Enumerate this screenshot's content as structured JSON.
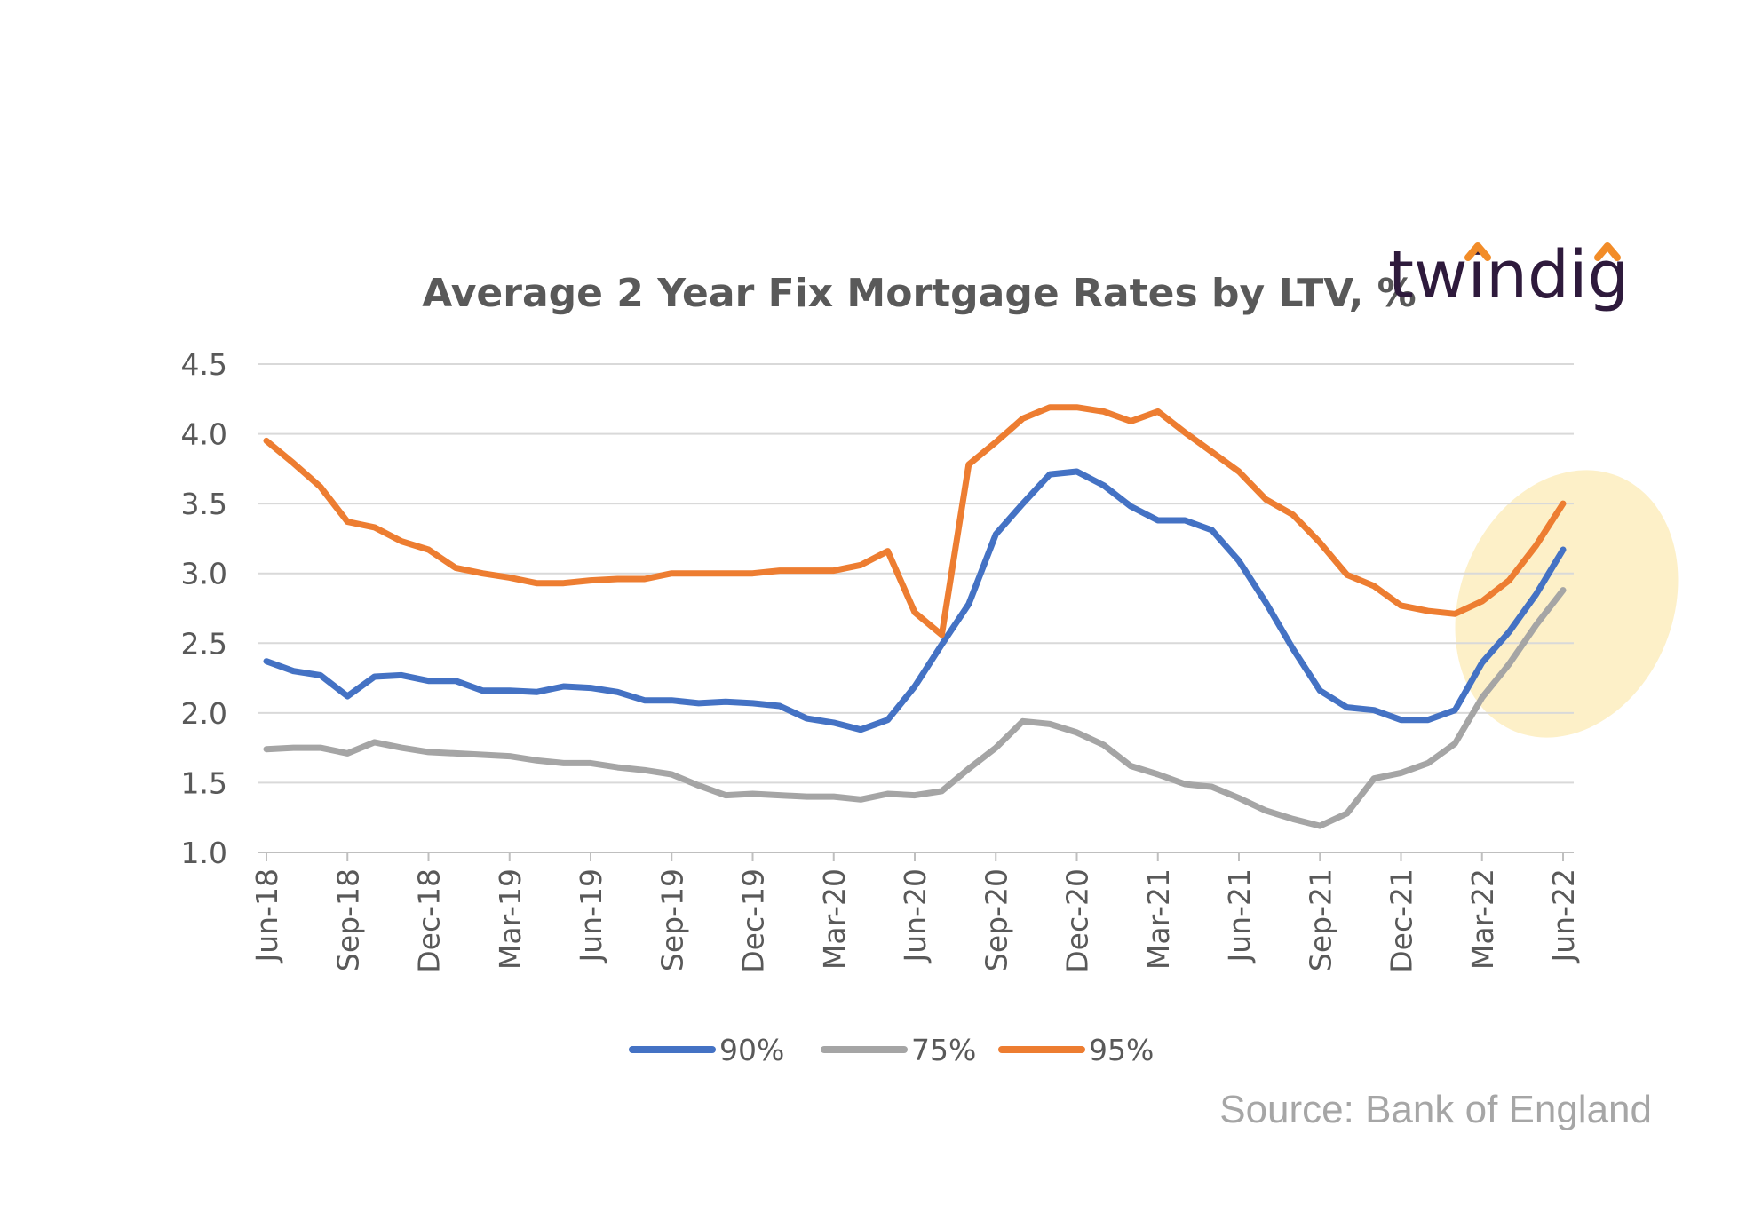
{
  "brand": {
    "logo_text": "twindig",
    "logo_accent_color": "#f28c28",
    "text_color": "#2e1a3c"
  },
  "source_note": "Source: Bank of England",
  "colors": {
    "s90": "#4472c4",
    "s75": "#a5a5a5",
    "s95": "#ed7d31",
    "highlight": "#fdf0c8",
    "grid": "#d9d9d9",
    "text": "#595959"
  },
  "chart_data": {
    "type": "line",
    "title": "Average 2 Year Fix Mortgage Rates by LTV, %",
    "xlabel": "",
    "ylabel": "",
    "ylim": [
      1.0,
      4.5
    ],
    "yticks": [
      "1.0",
      "1.5",
      "2.0",
      "2.5",
      "3.0",
      "3.5",
      "4.0",
      "4.5"
    ],
    "x_tick_labels": [
      "Jun-18",
      "Sep-18",
      "Dec-18",
      "Mar-19",
      "Jun-19",
      "Sep-19",
      "Dec-19",
      "Mar-20",
      "Jun-20",
      "Sep-20",
      "Dec-20",
      "Mar-21",
      "Jun-21",
      "Sep-21",
      "Dec-21",
      "Mar-22",
      "Jun-22"
    ],
    "x": [
      "Jun-18",
      "Jul-18",
      "Aug-18",
      "Sep-18",
      "Oct-18",
      "Nov-18",
      "Dec-18",
      "Jan-19",
      "Feb-19",
      "Mar-19",
      "Apr-19",
      "May-19",
      "Jun-19",
      "Jul-19",
      "Aug-19",
      "Sep-19",
      "Oct-19",
      "Nov-19",
      "Dec-19",
      "Jan-20",
      "Feb-20",
      "Mar-20",
      "Apr-20",
      "May-20",
      "Jun-20",
      "Jul-20",
      "Aug-20",
      "Sep-20",
      "Oct-20",
      "Nov-20",
      "Dec-20",
      "Jan-21",
      "Feb-21",
      "Mar-21",
      "Apr-21",
      "May-21",
      "Jun-21",
      "Jul-21",
      "Aug-21",
      "Sep-21",
      "Oct-21",
      "Nov-21",
      "Dec-21",
      "Jan-22",
      "Feb-22",
      "Mar-22",
      "Apr-22",
      "May-22",
      "Jun-22"
    ],
    "legend_position": "bottom",
    "grid": true,
    "highlight": "ellipse around the Mar-22 to Jun-22 values",
    "series": [
      {
        "name": "90%",
        "color": "#4472c4",
        "values": [
          2.37,
          2.3,
          2.27,
          2.12,
          2.26,
          2.27,
          2.23,
          2.23,
          2.16,
          2.16,
          2.15,
          2.19,
          2.18,
          2.15,
          2.09,
          2.09,
          2.07,
          2.08,
          2.07,
          2.05,
          1.96,
          1.93,
          1.88,
          1.95,
          2.19,
          2.49,
          2.78,
          3.28,
          3.5,
          3.71,
          3.73,
          3.63,
          3.48,
          3.38,
          3.38,
          3.31,
          3.09,
          2.79,
          2.46,
          2.16,
          2.04,
          2.02,
          1.95,
          1.95,
          2.02,
          2.36,
          2.58,
          2.85,
          3.17
        ]
      },
      {
        "name": "75%",
        "color": "#a5a5a5",
        "values": [
          1.74,
          1.75,
          1.75,
          1.71,
          1.79,
          1.75,
          1.72,
          1.71,
          1.7,
          1.69,
          1.66,
          1.64,
          1.64,
          1.61,
          1.59,
          1.56,
          1.48,
          1.41,
          1.42,
          1.41,
          1.4,
          1.4,
          1.38,
          1.42,
          1.41,
          1.44,
          1.6,
          1.75,
          1.94,
          1.92,
          1.86,
          1.77,
          1.62,
          1.56,
          1.49,
          1.47,
          1.39,
          1.3,
          1.24,
          1.19,
          1.28,
          1.53,
          1.57,
          1.64,
          1.78,
          2.11,
          2.35,
          2.63,
          2.88
        ]
      },
      {
        "name": "95%",
        "color": "#ed7d31",
        "values": [
          3.95,
          3.79,
          3.62,
          3.37,
          3.33,
          3.23,
          3.17,
          3.04,
          3.0,
          2.97,
          2.93,
          2.93,
          2.95,
          2.96,
          2.96,
          3.0,
          3.0,
          3.0,
          3.0,
          3.02,
          3.02,
          3.02,
          3.06,
          3.16,
          2.72,
          2.56,
          3.78,
          3.94,
          4.11,
          4.19,
          4.19,
          4.16,
          4.09,
          4.16,
          4.01,
          3.87,
          3.73,
          3.53,
          3.42,
          3.22,
          2.99,
          2.91,
          2.77,
          2.73,
          2.71,
          2.8,
          2.95,
          3.2,
          3.5
        ]
      }
    ]
  }
}
